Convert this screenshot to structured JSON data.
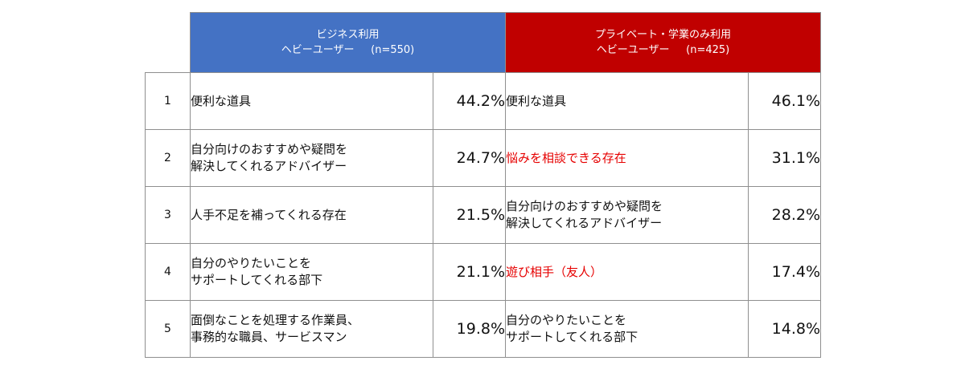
{
  "chart_data": {
    "type": "table",
    "title": "",
    "columns": [
      {
        "name": "ビジネス利用 ヘビーユーザー (n=550)",
        "header_lines": [
          "ビジネス利用",
          "ヘビーユーザー     (n=550)"
        ],
        "color": "#4472c4"
      },
      {
        "name": "プライベート・学業のみ利用 ヘビーユーザー (n=425)",
        "header_lines": [
          "プライベート・学業のみ利用",
          "ヘビーユーザー     (n=425)"
        ],
        "color": "#c00000"
      }
    ],
    "rows": [
      {
        "rank": "1",
        "business": {
          "label_lines": [
            "便利な道具"
          ],
          "value": 44.2,
          "value_text": "44.2%",
          "highlight": false
        },
        "private": {
          "label_lines": [
            "便利な道具"
          ],
          "value": 46.1,
          "value_text": "46.1%",
          "highlight": false
        }
      },
      {
        "rank": "2",
        "business": {
          "label_lines": [
            "自分向けのおすすめや疑問を",
            "解決してくれるアドバイザー"
          ],
          "value": 24.7,
          "value_text": "24.7%",
          "highlight": false
        },
        "private": {
          "label_lines": [
            "悩みを相談できる存在"
          ],
          "value": 31.1,
          "value_text": "31.1%",
          "highlight": true
        }
      },
      {
        "rank": "3",
        "business": {
          "label_lines": [
            "人手不足を補ってくれる存在"
          ],
          "value": 21.5,
          "value_text": "21.5%",
          "highlight": false
        },
        "private": {
          "label_lines": [
            "自分向けのおすすめや疑問を",
            "解決してくれるアドバイザー"
          ],
          "value": 28.2,
          "value_text": "28.2%",
          "highlight": false
        }
      },
      {
        "rank": "4",
        "business": {
          "label_lines": [
            "自分のやりたいことを",
            "サポートしてくれる部下"
          ],
          "value": 21.1,
          "value_text": "21.1%",
          "highlight": false
        },
        "private": {
          "label_lines": [
            "遊び相手（友人）"
          ],
          "value": 17.4,
          "value_text": "17.4%",
          "highlight": true
        }
      },
      {
        "rank": "5",
        "business": {
          "label_lines": [
            "面倒なことを処理する作業員、",
            "事務的な職員、サービスマン"
          ],
          "value": 19.8,
          "value_text": "19.8%",
          "highlight": false
        },
        "private": {
          "label_lines": [
            "自分のやりたいことを",
            "サポートしてくれる部下"
          ],
          "value": 14.8,
          "value_text": "14.8%",
          "highlight": false
        }
      }
    ],
    "highlight_color": "#e60000"
  }
}
